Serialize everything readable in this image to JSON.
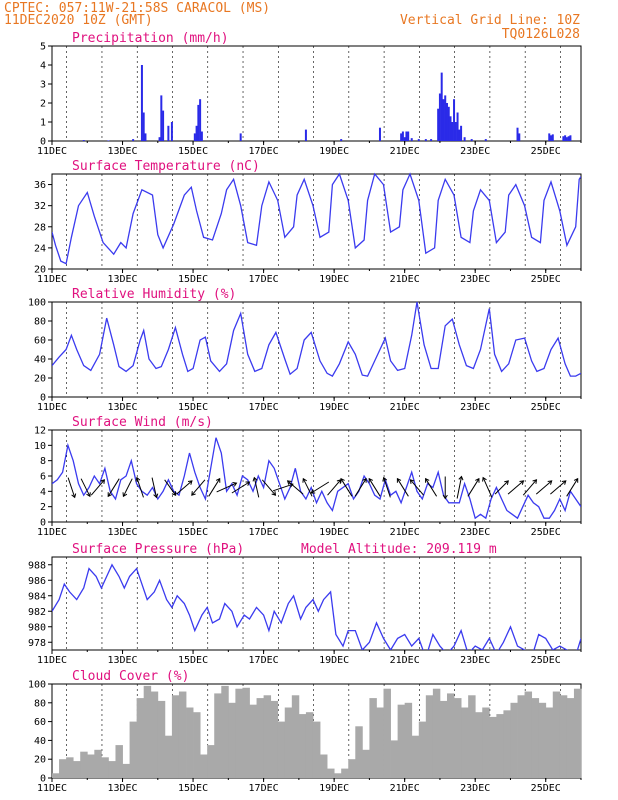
{
  "header": {
    "line1": "CPTEC:   057:11W-21:58S   CARACOL (MS)",
    "line2": "11DEC2020 10Z (GMT)",
    "right1": "Vertical Grid Line: 10Z",
    "right2": "TQ0126L028"
  },
  "colors": {
    "line": "#3b3bef",
    "bar": "#2a2ae8",
    "cloud": "#a9a9a9",
    "title": "#e0117f",
    "header": "#e87722"
  },
  "chart_data": [
    {
      "type": "bar",
      "title": "Precipitation (mm/h)",
      "ylim": [
        0,
        5
      ],
      "yticks": [
        "0",
        "1",
        "2",
        "3",
        "4",
        "5"
      ],
      "xticks": [
        "11DEC",
        "13DEC",
        "15DEC",
        "17DEC",
        "19DEC",
        "21DEC",
        "23DEC",
        "25DEC"
      ],
      "xlim_days": [
        11.0,
        26.0
      ],
      "x": [
        11.9,
        12.6,
        13.3,
        13.55,
        13.6,
        13.65,
        14.05,
        14.1,
        14.15,
        14.3,
        14.4,
        15.05,
        15.1,
        15.15,
        15.2,
        15.25,
        16.35,
        18.2,
        19.2,
        20.3,
        20.9,
        20.95,
        21.0,
        21.05,
        21.1,
        21.2,
        21.4,
        21.6,
        21.75,
        21.95,
        22.0,
        22.05,
        22.1,
        22.15,
        22.2,
        22.25,
        22.3,
        22.35,
        22.4,
        22.45,
        22.5,
        22.55,
        22.6,
        22.7,
        22.9,
        23.3,
        24.2,
        24.25,
        25.1,
        25.15,
        25.2,
        25.5,
        25.55,
        25.6,
        25.65,
        25.7
      ],
      "values": [
        0.05,
        0.03,
        0.1,
        4.0,
        1.5,
        0.4,
        0.2,
        2.4,
        1.6,
        0.8,
        1.0,
        0.4,
        0.8,
        1.9,
        2.2,
        0.5,
        0.4,
        0.6,
        0.1,
        0.7,
        0.4,
        0.5,
        0.2,
        0.5,
        0.5,
        0.15,
        0.1,
        0.1,
        0.1,
        1.7,
        2.5,
        3.6,
        2.2,
        2.4,
        2.0,
        1.8,
        1.3,
        1.0,
        2.2,
        1.0,
        1.5,
        0.6,
        0.8,
        0.2,
        0.1,
        0.1,
        0.7,
        0.4,
        0.4,
        0.3,
        0.35,
        0.25,
        0.3,
        0.2,
        0.25,
        0.3
      ]
    },
    {
      "type": "line",
      "title": "Surface Temperature (nC)",
      "ylim": [
        20,
        38
      ],
      "yticks": [
        "20",
        "24",
        "28",
        "32",
        "36"
      ],
      "xticks": [
        "11DEC",
        "13DEC",
        "15DEC",
        "17DEC",
        "19DEC",
        "21DEC",
        "23DEC",
        "25DEC"
      ],
      "xlim_days": [
        11.0,
        26.0
      ],
      "x": [
        11.0,
        11.1,
        11.25,
        11.4,
        11.55,
        11.75,
        12.0,
        12.2,
        12.45,
        12.75,
        12.95,
        13.1,
        13.3,
        13.55,
        13.85,
        14.0,
        14.15,
        14.45,
        14.75,
        14.95,
        15.1,
        15.3,
        15.55,
        15.8,
        15.95,
        16.15,
        16.35,
        16.55,
        16.8,
        16.95,
        17.15,
        17.4,
        17.6,
        17.85,
        17.95,
        18.15,
        18.4,
        18.6,
        18.85,
        18.95,
        19.15,
        19.4,
        19.6,
        19.85,
        19.95,
        20.15,
        20.4,
        20.6,
        20.85,
        20.95,
        21.15,
        21.4,
        21.6,
        21.85,
        21.95,
        22.15,
        22.4,
        22.6,
        22.85,
        22.95,
        23.15,
        23.4,
        23.6,
        23.85,
        23.95,
        24.15,
        24.4,
        24.6,
        24.85,
        24.95,
        25.15,
        25.4,
        25.6,
        25.85,
        25.95,
        26.0
      ],
      "values": [
        27.0,
        24.5,
        21.5,
        21.0,
        26.0,
        32.0,
        34.5,
        30.0,
        25.0,
        22.8,
        25.0,
        24.0,
        30.5,
        35.0,
        34.0,
        26.5,
        24.0,
        28.5,
        34.0,
        35.5,
        31.0,
        26.0,
        25.5,
        30.5,
        35.0,
        37.0,
        32.0,
        25.0,
        24.5,
        32.0,
        36.5,
        33.0,
        26.0,
        28.0,
        34.0,
        37.0,
        32.0,
        26.0,
        27.0,
        36.0,
        38.0,
        33.0,
        24.0,
        25.5,
        33.0,
        38.0,
        36.0,
        27.0,
        28.0,
        35.0,
        38.0,
        33.0,
        23.0,
        24.0,
        33.0,
        37.0,
        34.0,
        26.0,
        25.0,
        31.0,
        35.0,
        33.0,
        25.0,
        27.0,
        34.0,
        36.0,
        32.0,
        26.0,
        25.0,
        33.0,
        36.5,
        31.0,
        24.5,
        28.0,
        37.0,
        37.5
      ]
    },
    {
      "type": "line",
      "title": "Relative Humidity (%)",
      "ylim": [
        0,
        100
      ],
      "yticks": [
        "0",
        "20",
        "40",
        "60",
        "80",
        "100"
      ],
      "xticks": [
        "11DEC",
        "13DEC",
        "15DEC",
        "17DEC",
        "19DEC",
        "21DEC",
        "23DEC",
        "25DEC"
      ],
      "xlim_days": [
        11.0,
        26.0
      ],
      "x": [
        11.0,
        11.2,
        11.4,
        11.55,
        11.7,
        11.9,
        12.1,
        12.35,
        12.55,
        12.75,
        12.9,
        13.1,
        13.3,
        13.5,
        13.6,
        13.75,
        13.95,
        14.1,
        14.3,
        14.5,
        14.7,
        14.85,
        15.0,
        15.2,
        15.35,
        15.5,
        15.75,
        15.95,
        16.15,
        16.35,
        16.55,
        16.75,
        16.95,
        17.15,
        17.35,
        17.6,
        17.75,
        17.95,
        18.15,
        18.35,
        18.6,
        18.8,
        18.95,
        19.15,
        19.4,
        19.6,
        19.8,
        19.95,
        20.15,
        20.45,
        20.6,
        20.8,
        21.0,
        21.2,
        21.35,
        21.55,
        21.75,
        21.95,
        22.15,
        22.35,
        22.55,
        22.75,
        22.95,
        23.15,
        23.4,
        23.55,
        23.75,
        23.95,
        24.15,
        24.4,
        24.6,
        24.75,
        24.95,
        25.15,
        25.35,
        25.55,
        25.7,
        25.85,
        26.0
      ],
      "values": [
        33,
        42,
        50,
        65,
        50,
        33,
        28,
        45,
        83,
        55,
        32,
        27,
        33,
        60,
        70,
        40,
        30,
        32,
        50,
        73,
        45,
        27,
        30,
        60,
        63,
        38,
        27,
        35,
        70,
        88,
        45,
        27,
        30,
        55,
        68,
        40,
        24,
        30,
        60,
        68,
        38,
        25,
        22,
        35,
        58,
        45,
        23,
        22,
        38,
        62,
        38,
        28,
        30,
        65,
        100,
        55,
        30,
        30,
        75,
        82,
        55,
        33,
        30,
        50,
        93,
        45,
        27,
        35,
        60,
        62,
        38,
        27,
        30,
        50,
        62,
        35,
        22,
        22,
        25
      ]
    },
    {
      "type": "line",
      "title": "Surface Wind (m/s)",
      "ylim": [
        0,
        12
      ],
      "yticks": [
        "0",
        "2",
        "4",
        "6",
        "8",
        "10",
        "12"
      ],
      "xticks": [
        "11DEC",
        "13DEC",
        "15DEC",
        "17DEC",
        "19DEC",
        "21DEC",
        "23DEC",
        "25DEC"
      ],
      "xlim_days": [
        11.0,
        26.0
      ],
      "x": [
        11.0,
        11.15,
        11.3,
        11.45,
        11.6,
        11.75,
        11.9,
        12.05,
        12.2,
        12.35,
        12.5,
        12.65,
        12.8,
        12.95,
        13.1,
        13.25,
        13.4,
        13.55,
        13.7,
        13.85,
        14.0,
        14.15,
        14.3,
        14.45,
        14.6,
        14.75,
        14.9,
        15.05,
        15.2,
        15.35,
        15.5,
        15.65,
        15.8,
        15.95,
        16.1,
        16.25,
        16.4,
        16.55,
        16.7,
        16.85,
        17.0,
        17.15,
        17.3,
        17.45,
        17.6,
        17.75,
        17.9,
        18.05,
        18.2,
        18.35,
        18.5,
        18.65,
        18.8,
        18.95,
        19.1,
        19.25,
        19.4,
        19.55,
        19.7,
        19.85,
        20.0,
        20.15,
        20.3,
        20.45,
        20.6,
        20.75,
        20.9,
        21.05,
        21.2,
        21.35,
        21.5,
        21.65,
        21.8,
        21.95,
        22.1,
        22.25,
        22.4,
        22.55,
        22.7,
        22.85,
        23.0,
        23.15,
        23.3,
        23.45,
        23.6,
        23.75,
        23.9,
        24.05,
        24.2,
        24.35,
        24.5,
        24.65,
        24.8,
        24.95,
        25.1,
        25.25,
        25.4,
        25.55,
        25.7,
        25.85,
        26.0
      ],
      "values": [
        5.0,
        5.5,
        6.5,
        10.0,
        8.0,
        5.0,
        3.5,
        4.5,
        6.0,
        5.0,
        7.0,
        4.0,
        3.0,
        5.5,
        6.0,
        8.0,
        5.0,
        4.0,
        3.5,
        4.5,
        3.0,
        4.0,
        5.5,
        4.0,
        3.5,
        6.0,
        9.0,
        6.5,
        4.5,
        3.0,
        7.0,
        11.0,
        9.0,
        4.0,
        5.0,
        3.5,
        6.0,
        5.5,
        4.0,
        6.0,
        4.5,
        8.0,
        7.0,
        5.0,
        3.0,
        4.5,
        7.0,
        4.0,
        3.0,
        4.5,
        2.5,
        4.0,
        2.5,
        1.5,
        4.0,
        4.5,
        5.0,
        3.0,
        4.0,
        6.0,
        5.0,
        3.5,
        3.0,
        5.5,
        3.5,
        4.0,
        2.5,
        4.5,
        6.5,
        4.0,
        3.0,
        5.0,
        4.5,
        6.5,
        3.5,
        2.5,
        2.5,
        2.5,
        5.0,
        3.0,
        0.5,
        1.0,
        0.5,
        3.0,
        4.5,
        3.0,
        1.5,
        1.0,
        0.5,
        2.0,
        3.5,
        2.5,
        2.0,
        0.5,
        0.5,
        1.5,
        3.0,
        1.5,
        4.0,
        3.0,
        2.0
      ]
    },
    {
      "type": "line",
      "title": "Surface Pressure (hPa)",
      "subtitle": "Model Altitude: 209.119  m",
      "ylim": [
        977,
        989
      ],
      "yticks": [
        "978",
        "980",
        "982",
        "984",
        "986",
        "988"
      ],
      "xticks": [
        "11DEC",
        "13DEC",
        "15DEC",
        "17DEC",
        "19DEC",
        "21DEC",
        "23DEC",
        "25DEC"
      ],
      "xlim_days": [
        11.0,
        26.0
      ],
      "x": [
        11.0,
        11.2,
        11.35,
        11.5,
        11.7,
        11.9,
        12.05,
        12.25,
        12.4,
        12.55,
        12.7,
        12.9,
        13.05,
        13.2,
        13.4,
        13.55,
        13.7,
        13.9,
        14.05,
        14.25,
        14.4,
        14.55,
        14.75,
        14.9,
        15.05,
        15.25,
        15.4,
        15.55,
        15.75,
        15.9,
        16.1,
        16.25,
        16.45,
        16.6,
        16.8,
        17.0,
        17.15,
        17.3,
        17.5,
        17.7,
        17.85,
        18.05,
        18.2,
        18.4,
        18.55,
        18.7,
        18.9,
        19.05,
        19.25,
        19.4,
        19.6,
        19.8,
        20.0,
        20.2,
        20.4,
        20.6,
        20.8,
        21.0,
        21.2,
        21.4,
        21.6,
        21.8,
        22.0,
        22.2,
        22.4,
        22.6,
        22.8,
        23.0,
        23.2,
        23.4,
        23.6,
        23.8,
        24.0,
        24.2,
        24.4,
        24.6,
        24.8,
        25.0,
        25.2,
        25.4,
        25.6,
        25.8,
        26.0
      ],
      "values": [
        982.0,
        983.5,
        985.5,
        984.5,
        983.5,
        985.0,
        987.5,
        986.5,
        985.0,
        986.5,
        988.0,
        986.5,
        985.0,
        986.5,
        987.5,
        985.5,
        983.5,
        984.5,
        986.0,
        983.5,
        982.5,
        984.0,
        983.0,
        981.5,
        979.5,
        981.5,
        982.5,
        980.5,
        981.0,
        983.0,
        982.0,
        980.0,
        981.5,
        981.0,
        982.5,
        981.5,
        979.5,
        982.0,
        980.5,
        983.0,
        984.0,
        981.0,
        982.5,
        983.5,
        982.0,
        983.5,
        984.5,
        979.0,
        977.5,
        979.5,
        979.5,
        977.0,
        978.0,
        980.5,
        978.5,
        977.0,
        978.5,
        979.0,
        977.5,
        978.5,
        976.0,
        979.0,
        977.5,
        976.5,
        977.5,
        979.5,
        976.5,
        977.5,
        977.0,
        978.5,
        976.5,
        978.0,
        980.0,
        977.5,
        977.0,
        976.0,
        979.0,
        978.5,
        977.0,
        977.5,
        977.0,
        975.5,
        978.5
      ]
    },
    {
      "type": "bar",
      "title": "Cloud Cover (%)",
      "ylim": [
        0,
        100
      ],
      "yticks": [
        "0",
        "20",
        "40",
        "60",
        "80",
        "100"
      ],
      "xticks": [
        "11DEC",
        "13DEC",
        "15DEC",
        "17DEC",
        "19DEC",
        "21DEC",
        "23DEC",
        "25DEC"
      ],
      "xlim_days": [
        11.0,
        26.0
      ],
      "x": [
        11.0,
        11.2,
        11.4,
        11.6,
        11.8,
        12.0,
        12.2,
        12.4,
        12.6,
        12.8,
        13.0,
        13.2,
        13.4,
        13.6,
        13.8,
        14.0,
        14.2,
        14.4,
        14.6,
        14.8,
        15.0,
        15.2,
        15.4,
        15.6,
        15.8,
        16.0,
        16.2,
        16.4,
        16.6,
        16.8,
        17.0,
        17.2,
        17.4,
        17.6,
        17.8,
        18.0,
        18.2,
        18.4,
        18.6,
        18.8,
        19.0,
        19.2,
        19.4,
        19.6,
        19.8,
        20.0,
        20.2,
        20.4,
        20.6,
        20.8,
        21.0,
        21.2,
        21.4,
        21.6,
        21.8,
        22.0,
        22.2,
        22.4,
        22.6,
        22.8,
        23.0,
        23.2,
        23.4,
        23.6,
        23.8,
        24.0,
        24.2,
        24.4,
        24.6,
        24.8,
        25.0,
        25.2,
        25.4,
        25.6,
        25.8
      ],
      "values": [
        5,
        20,
        22,
        18,
        28,
        25,
        30,
        22,
        18,
        35,
        15,
        60,
        85,
        98,
        92,
        82,
        45,
        88,
        92,
        75,
        70,
        25,
        35,
        90,
        98,
        80,
        95,
        96,
        78,
        85,
        88,
        82,
        60,
        75,
        88,
        68,
        70,
        60,
        25,
        10,
        5,
        10,
        20,
        55,
        30,
        85,
        75,
        95,
        40,
        78,
        80,
        45,
        60,
        88,
        95,
        82,
        90,
        85,
        75,
        88,
        70,
        75,
        65,
        68,
        72,
        80,
        88,
        92,
        85,
        80,
        75,
        92,
        88,
        85,
        95
      ]
    }
  ],
  "wind_arrows": {
    "x": [
      11.55,
      11.95,
      12.3,
      12.75,
      13.15,
      13.5,
      13.9,
      14.35,
      14.75,
      15.15,
      15.6,
      15.95,
      16.35,
      16.8,
      17.15,
      17.55,
      17.9,
      18.25,
      18.6,
      19.0,
      19.35,
      19.75,
      20.15,
      20.5,
      20.95,
      21.35,
      21.75,
      22.15,
      22.55,
      22.95,
      23.35,
      23.75,
      24.15,
      24.55,
      24.95,
      25.35,
      25.75
    ],
    "u": [
      0.3,
      0.4,
      0.6,
      -0.5,
      -0.4,
      -0.3,
      0.2,
      0.5,
      0.7,
      -0.6,
      0.5,
      0.9,
      0.8,
      -0.2,
      0.6,
      0.9,
      -0.7,
      -0.4,
      -0.8,
      0.6,
      -0.5,
      0.5,
      -0.5,
      -0.3,
      -0.5,
      -0.6,
      -0.5,
      0.0,
      0.2,
      0.5,
      -0.4,
      0.6,
      0.7,
      0.6,
      0.7,
      0.7,
      0.5
    ],
    "v": [
      -0.9,
      -0.8,
      0.7,
      -0.8,
      -0.8,
      0.9,
      -0.9,
      -0.7,
      0.6,
      -0.7,
      0.8,
      0.4,
      0.5,
      0.9,
      -0.7,
      0.3,
      0.6,
      0.8,
      -0.5,
      0.7,
      0.8,
      0.8,
      0.8,
      0.9,
      0.8,
      0.7,
      0.8,
      -1.0,
      1.0,
      0.8,
      0.9,
      0.6,
      0.6,
      0.7,
      0.6,
      0.6,
      0.8
    ]
  }
}
